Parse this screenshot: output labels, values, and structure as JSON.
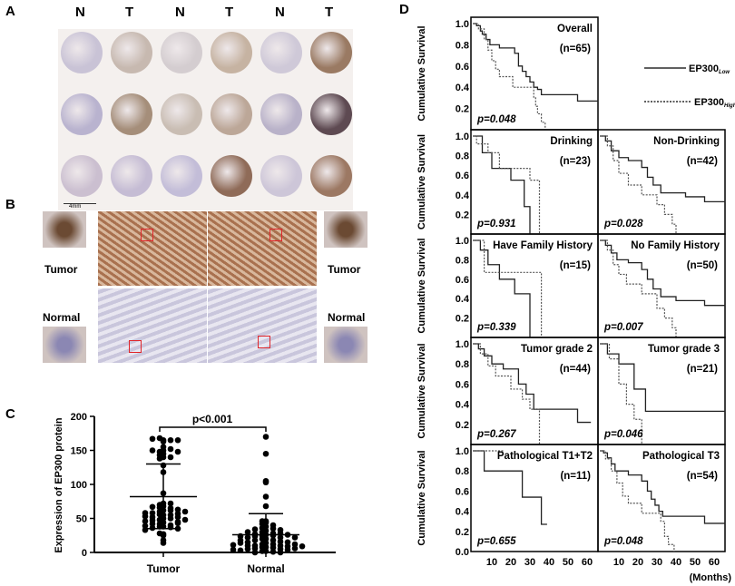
{
  "panels": {
    "a": "A",
    "b": "B",
    "c": "C",
    "d": "D"
  },
  "panel_a": {
    "column_labels": [
      "N",
      "T",
      "N",
      "T",
      "N",
      "T"
    ],
    "scale_bar": "4mm",
    "cores": [
      [
        "#c9c3d6",
        "#c7b9b0",
        "#d4cdd0",
        "#c6b3a2",
        "#cfc9d8",
        "#9a7a63"
      ],
      [
        "#b9b3cf",
        "#a58e7a",
        "#c9bdb3",
        "#bca798",
        "#b9b2c9",
        "#5e4a52"
      ],
      [
        "#cbbfd0",
        "#c5bcd4",
        "#c3bdd8",
        "#8f6b58",
        "#cdc6d8",
        "#9c7863"
      ]
    ]
  },
  "panel_b": {
    "tumor_label": "Tumor",
    "normal_label": "Normal",
    "tumor_color": "#a9714f",
    "normal_color": "#c9c6dc",
    "box_color": "#e0262a"
  },
  "chart_data": [
    {
      "type": "scatter",
      "panel": "C",
      "ylabel": "Expression of EP300 protein",
      "categories": [
        "Tumor",
        "Normal"
      ],
      "ylim": [
        0,
        200
      ],
      "yticks": [
        0,
        50,
        100,
        150,
        200
      ],
      "annotation": "p<0.001",
      "series": [
        {
          "category": "Tumor",
          "mean": 82,
          "sd_low": 35,
          "sd_high": 130,
          "values": [
            165,
            168,
            165,
            163,
            167,
            165,
            150,
            148,
            152,
            155,
            150,
            145,
            140,
            138,
            143,
            140,
            148,
            128,
            118,
            87,
            72,
            70,
            72,
            68,
            66,
            65,
            67,
            62,
            60,
            63,
            62,
            58,
            57,
            55,
            56,
            58,
            55,
            52,
            50,
            48,
            50,
            47,
            45,
            46,
            48,
            44,
            42,
            40,
            38,
            38,
            37,
            42,
            43,
            39,
            36,
            35,
            25,
            27,
            18,
            14,
            28,
            33,
            60,
            52,
            53
          ]
        },
        {
          "category": "Normal",
          "mean": 26,
          "sd_low": 0,
          "sd_high": 57,
          "values": [
            170,
            145,
            105,
            103,
            82,
            68,
            46,
            44,
            42,
            40,
            38,
            46,
            36,
            35,
            34,
            33,
            32,
            30,
            28,
            27,
            26,
            25,
            25,
            24,
            22,
            22,
            20,
            20,
            18,
            18,
            16,
            15,
            15,
            14,
            12,
            12,
            10,
            10,
            10,
            9,
            8,
            8,
            7,
            6,
            5,
            5,
            4,
            3,
            2,
            2,
            1,
            0,
            0,
            28,
            30,
            26,
            24,
            22,
            18,
            14,
            12,
            11,
            9,
            6,
            4
          ]
        }
      ]
    },
    {
      "type": "line",
      "panel": "D",
      "ylabel": "Cumulative Survival",
      "xlabel": "(Months)",
      "xticks": [
        10,
        20,
        30,
        40,
        50,
        60
      ],
      "yticks": [
        0.0,
        0.2,
        0.4,
        0.6,
        0.8,
        1.0
      ],
      "legend": [
        {
          "name": "EP300",
          "sub": "Low",
          "style": "solid"
        },
        {
          "name": "EP300",
          "sub": "High",
          "style": "dotted"
        }
      ],
      "plots": [
        {
          "title": "Overall",
          "n": "(n=65)",
          "p": "p=0.048",
          "low": [
            [
              0,
              1
            ],
            [
              2,
              0.98
            ],
            [
              4,
              0.93
            ],
            [
              5,
              0.9
            ],
            [
              7,
              0.85
            ],
            [
              9,
              0.8
            ],
            [
              14,
              0.77
            ],
            [
              22,
              0.72
            ],
            [
              24,
              0.6
            ],
            [
              26,
              0.55
            ],
            [
              28,
              0.5
            ],
            [
              30,
              0.45
            ],
            [
              32,
              0.4
            ],
            [
              34,
              0.38
            ],
            [
              36,
              0.33
            ],
            [
              55,
              0.27
            ],
            [
              66,
              0.27
            ]
          ],
          "high": [
            [
              0,
              1
            ],
            [
              3,
              0.95
            ],
            [
              6,
              0.85
            ],
            [
              8,
              0.75
            ],
            [
              10,
              0.65
            ],
            [
              12,
              0.57
            ],
            [
              14,
              0.5
            ],
            [
              21,
              0.4
            ],
            [
              32,
              0.3
            ],
            [
              33,
              0.22
            ],
            [
              34,
              0.15
            ],
            [
              36,
              0.07
            ],
            [
              38,
              0
            ]
          ]
        },
        {
          "title": "Drinking",
          "n": "(n=23)",
          "p": "p=0.931",
          "low": [
            [
              0,
              1
            ],
            [
              5,
              0.83
            ],
            [
              10,
              0.67
            ],
            [
              20,
              0.55
            ],
            [
              27,
              0.28
            ],
            [
              30,
              0
            ]
          ],
          "high": [
            [
              0,
              1
            ],
            [
              2,
              0.92
            ],
            [
              8,
              0.83
            ],
            [
              14,
              0.67
            ],
            [
              30,
              0.55
            ],
            [
              35,
              0
            ]
          ]
        },
        {
          "title": "Non-Drinking",
          "n": "(n=42)",
          "p": "p=0.028",
          "low": [
            [
              0,
              1
            ],
            [
              3,
              0.95
            ],
            [
              6,
              0.85
            ],
            [
              10,
              0.78
            ],
            [
              15,
              0.75
            ],
            [
              22,
              0.68
            ],
            [
              25,
              0.58
            ],
            [
              28,
              0.5
            ],
            [
              32,
              0.42
            ],
            [
              45,
              0.38
            ],
            [
              55,
              0.33
            ],
            [
              66,
              0.33
            ]
          ],
          "high": [
            [
              0,
              1
            ],
            [
              4,
              0.9
            ],
            [
              7,
              0.75
            ],
            [
              10,
              0.62
            ],
            [
              15,
              0.5
            ],
            [
              22,
              0.4
            ],
            [
              30,
              0.3
            ],
            [
              34,
              0.2
            ],
            [
              38,
              0.1
            ],
            [
              40,
              0
            ]
          ]
        },
        {
          "title": "Have Family History",
          "n": "(n=15)",
          "p": "p=0.339",
          "low": [
            [
              0,
              1
            ],
            [
              4,
              0.9
            ],
            [
              8,
              0.75
            ],
            [
              14,
              0.6
            ],
            [
              22,
              0.45
            ],
            [
              30,
              0
            ]
          ],
          "high": [
            [
              0,
              1
            ],
            [
              6,
              0.67
            ],
            [
              36,
              0
            ]
          ]
        },
        {
          "title": "No Family History",
          "n": "(n=50)",
          "p": "p=0.007",
          "low": [
            [
              0,
              1
            ],
            [
              3,
              0.95
            ],
            [
              6,
              0.87
            ],
            [
              9,
              0.8
            ],
            [
              15,
              0.77
            ],
            [
              22,
              0.7
            ],
            [
              25,
              0.6
            ],
            [
              28,
              0.5
            ],
            [
              32,
              0.42
            ],
            [
              40,
              0.38
            ],
            [
              55,
              0.33
            ],
            [
              66,
              0.33
            ]
          ],
          "high": [
            [
              0,
              1
            ],
            [
              4,
              0.9
            ],
            [
              7,
              0.75
            ],
            [
              10,
              0.65
            ],
            [
              14,
              0.55
            ],
            [
              22,
              0.45
            ],
            [
              30,
              0.3
            ],
            [
              34,
              0.2
            ],
            [
              38,
              0.1
            ],
            [
              40,
              0
            ]
          ]
        },
        {
          "title": "Tumor grade 2",
          "n": "(n=44)",
          "p": "p=0.267",
          "low": [
            [
              0,
              1
            ],
            [
              3,
              0.95
            ],
            [
              6,
              0.88
            ],
            [
              10,
              0.8
            ],
            [
              16,
              0.75
            ],
            [
              24,
              0.6
            ],
            [
              28,
              0.5
            ],
            [
              32,
              0.35
            ],
            [
              55,
              0.22
            ],
            [
              62,
              0.22
            ]
          ],
          "high": [
            [
              0,
              1
            ],
            [
              4,
              0.9
            ],
            [
              8,
              0.78
            ],
            [
              12,
              0.68
            ],
            [
              20,
              0.55
            ],
            [
              26,
              0.45
            ],
            [
              30,
              0.35
            ],
            [
              35,
              0
            ]
          ]
        },
        {
          "title": "Tumor grade 3",
          "n": "(n=21)",
          "p": "p=0.046",
          "low": [
            [
              0,
              1
            ],
            [
              4,
              0.9
            ],
            [
              10,
              0.8
            ],
            [
              18,
              0.55
            ],
            [
              24,
              0.33
            ],
            [
              66,
              0.33
            ]
          ],
          "high": [
            [
              0,
              1
            ],
            [
              5,
              0.85
            ],
            [
              10,
              0.6
            ],
            [
              14,
              0.4
            ],
            [
              18,
              0.25
            ],
            [
              22,
              0
            ]
          ]
        },
        {
          "title": "Pathological T1+T2",
          "n": "(n=11)",
          "p": "p=0.655",
          "low": [
            [
              0,
              1
            ],
            [
              6,
              0.8
            ],
            [
              26,
              0.54
            ],
            [
              36,
              0.27
            ],
            [
              39,
              0.27
            ]
          ],
          "high": [
            [
              0,
              1
            ],
            [
              16,
              1
            ]
          ]
        },
        {
          "title": "Pathological T3",
          "n": "(n=54)",
          "p": "p=0.048",
          "low": [
            [
              0,
              1
            ],
            [
              2,
              0.98
            ],
            [
              4,
              0.93
            ],
            [
              6,
              0.87
            ],
            [
              8,
              0.8
            ],
            [
              15,
              0.76
            ],
            [
              22,
              0.7
            ],
            [
              25,
              0.6
            ],
            [
              27,
              0.52
            ],
            [
              29,
              0.46
            ],
            [
              31,
              0.4
            ],
            [
              33,
              0.35
            ],
            [
              55,
              0.28
            ],
            [
              66,
              0.28
            ]
          ],
          "high": [
            [
              0,
              1
            ],
            [
              3,
              0.92
            ],
            [
              6,
              0.8
            ],
            [
              9,
              0.68
            ],
            [
              12,
              0.55
            ],
            [
              15,
              0.48
            ],
            [
              22,
              0.38
            ],
            [
              32,
              0.3
            ],
            [
              34,
              0.15
            ],
            [
              36,
              0.07
            ],
            [
              39,
              0
            ]
          ]
        }
      ]
    }
  ]
}
